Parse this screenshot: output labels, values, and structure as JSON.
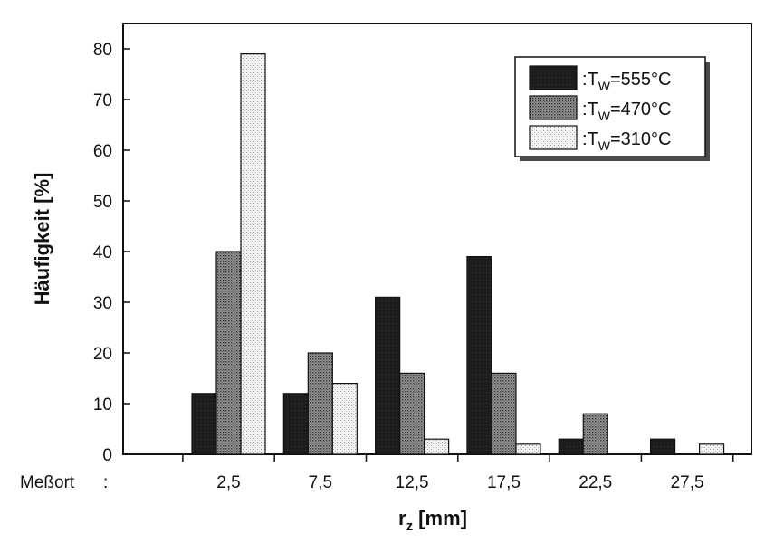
{
  "chart_data": {
    "type": "bar",
    "x_prefix_label": "Meßort",
    "x_prefix_sep": ":",
    "categories": [
      "2,5",
      "7,5",
      "12,5",
      "17,5",
      "22,5",
      "27,5"
    ],
    "series": [
      {
        "name_base": "T",
        "name_sub": "W",
        "name_rest": "=555°C",
        "name_colon": ":",
        "pattern": "solid-dark",
        "color": "#1a1a1a",
        "values": [
          12,
          12,
          31,
          39,
          3,
          3
        ]
      },
      {
        "name_base": "T",
        "name_sub": "W",
        "name_rest": "=470°C",
        "name_colon": ":",
        "pattern": "dotted-medium",
        "color": "#7a7a7a",
        "values": [
          40,
          20,
          16,
          16,
          8,
          0
        ]
      },
      {
        "name_base": "T",
        "name_sub": "W",
        "name_rest": "=310°C",
        "name_colon": ":",
        "pattern": "dotted-light",
        "color": "#dedede",
        "values": [
          79,
          14,
          3,
          2,
          0,
          2
        ]
      }
    ],
    "ylabel": "Häufigkeit [%]",
    "xlabel_base": "r",
    "xlabel_sub": "z",
    "xlabel_rest": " [mm]",
    "ylim": [
      0,
      85
    ],
    "yticks": [
      "0",
      "10",
      "20",
      "30",
      "40",
      "50",
      "60",
      "70",
      "80"
    ],
    "ytick_values": [
      0,
      10,
      20,
      30,
      40,
      50,
      60,
      70,
      80
    ],
    "legend_position": "top-right",
    "grid": false
  }
}
